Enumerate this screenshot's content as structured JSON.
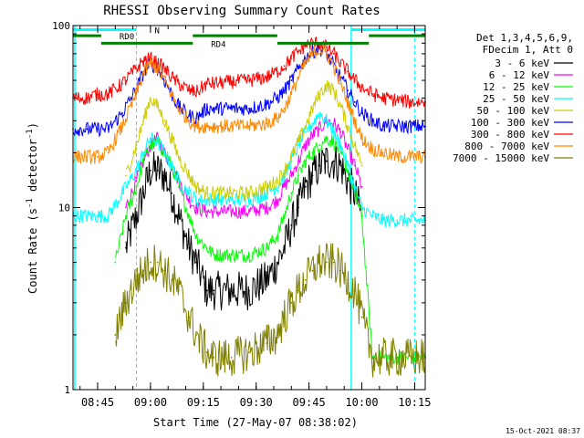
{
  "chart_data": {
    "type": "line",
    "title": "RHESSI Observing Summary Count Rates",
    "xlabel": "Start Time (27-May-07 08:38:02)",
    "ylabel": "Count Rate (s⁻¹ detector⁻¹)",
    "ylabel_main": "Count Rate (s",
    "ylabel_sup1": "-1",
    "ylabel_mid": " detector",
    "ylabel_sup2": "-1",
    "ylabel_end": ")",
    "yscale": "log",
    "ylim": [
      1,
      100
    ],
    "xlim_minutes": [
      0,
      100
    ],
    "y_ticks": [
      {
        "value": 1,
        "label": "1"
      },
      {
        "value": 10,
        "label": "10"
      },
      {
        "value": 100,
        "label": "100"
      }
    ],
    "x_ticks": [
      {
        "minute": 7,
        "label": "08:45"
      },
      {
        "minute": 22,
        "label": "09:00"
      },
      {
        "minute": 37,
        "label": "09:15"
      },
      {
        "minute": 52,
        "label": "09:30"
      },
      {
        "minute": 67,
        "label": "09:45"
      },
      {
        "minute": 82,
        "label": "10:00"
      },
      {
        "minute": 97,
        "label": "10:15"
      }
    ],
    "legend_header": [
      "Det 1,3,4,5,6,9,",
      "FDecim 1, Att 0"
    ],
    "series": [
      {
        "name": "3 - 6 keV",
        "color": "#000000",
        "x": [
          8,
          12,
          15,
          18,
          20,
          22,
          24,
          26,
          28,
          30,
          33,
          35,
          38,
          40,
          45,
          50,
          55,
          58,
          60,
          62,
          64,
          66,
          68,
          70,
          72,
          74,
          76,
          78,
          80,
          82,
          85
        ],
        "values": [
          null,
          null,
          6,
          9,
          12,
          16,
          16,
          15,
          12,
          9,
          6,
          5,
          3.5,
          3.5,
          3.5,
          3.5,
          4,
          5,
          6,
          8,
          10,
          13,
          15,
          17,
          18,
          18,
          17,
          14,
          12,
          9,
          null
        ]
      },
      {
        "name": "6 - 12 keV",
        "color": "#ff00ff",
        "x": [
          8,
          12,
          15,
          18,
          20,
          22,
          24,
          26,
          28,
          30,
          33,
          35,
          38,
          40,
          45,
          50,
          55,
          58,
          60,
          62,
          64,
          66,
          68,
          70,
          72,
          74,
          76,
          78,
          80,
          82,
          85
        ],
        "values": [
          null,
          null,
          10,
          14,
          18,
          22,
          24,
          20,
          17,
          14,
          11,
          10,
          9.5,
          9.5,
          9.5,
          9.5,
          10,
          11,
          13,
          15,
          18,
          22,
          25,
          27,
          30,
          29,
          26,
          21,
          17,
          13,
          null
        ]
      },
      {
        "name": "12 - 25 keV",
        "color": "#00ff00",
        "x": [
          0,
          8,
          12,
          15,
          18,
          20,
          22,
          24,
          26,
          28,
          30,
          33,
          35,
          38,
          40,
          45,
          50,
          55,
          58,
          60,
          62,
          64,
          66,
          68,
          70,
          72,
          74,
          76,
          78,
          80,
          82,
          85,
          88,
          92,
          96,
          100
        ],
        "values": [
          null,
          null,
          5,
          9,
          13,
          18,
          22,
          23,
          20,
          17,
          13,
          9,
          7,
          6,
          5.5,
          5.5,
          5.5,
          6,
          7,
          9,
          12,
          15,
          18,
          20,
          22,
          24,
          23,
          20,
          16,
          12,
          9,
          1.5,
          1.5,
          1.5,
          1.5,
          1.5
        ]
      },
      {
        "name": "25 - 50 keV",
        "color": "#00ffff",
        "x": [
          0,
          4,
          7,
          10,
          14,
          18,
          20,
          22,
          24,
          26,
          28,
          30,
          33,
          35,
          38,
          40,
          45,
          50,
          55,
          58,
          60,
          62,
          64,
          66,
          68,
          70,
          72,
          74,
          76,
          78,
          80,
          82,
          85,
          88,
          92,
          96,
          100
        ],
        "values": [
          9,
          9,
          9,
          9,
          12,
          16,
          20,
          24,
          23,
          20,
          17,
          14,
          12,
          11,
          11,
          11,
          11,
          11,
          12,
          13,
          15,
          18,
          22,
          26,
          29,
          33,
          30,
          26,
          22,
          17,
          13,
          10,
          9,
          8.5,
          8.5,
          8.5,
          8.5
        ]
      },
      {
        "name": "50 - 100 keV",
        "color": "#cccc00",
        "x": [
          8,
          12,
          15,
          18,
          20,
          22,
          24,
          26,
          28,
          30,
          33,
          35,
          38,
          40,
          45,
          50,
          55,
          58,
          60,
          62,
          64,
          66,
          68,
          70,
          72,
          74,
          76,
          78,
          80,
          82,
          85
        ],
        "values": [
          null,
          null,
          15,
          22,
          30,
          40,
          36,
          30,
          24,
          19,
          15,
          13,
          12,
          12,
          12,
          12,
          13,
          14,
          16,
          19,
          23,
          28,
          35,
          42,
          47,
          44,
          36,
          28,
          22,
          17,
          null
        ]
      },
      {
        "name": "100 - 300 keV",
        "color": "#0000ff",
        "x": [
          0,
          4,
          7,
          10,
          14,
          18,
          20,
          22,
          24,
          26,
          28,
          30,
          33,
          35,
          38,
          40,
          45,
          50,
          55,
          58,
          60,
          62,
          64,
          66,
          68,
          70,
          72,
          74,
          76,
          78,
          80,
          82,
          85,
          88,
          92,
          96,
          100
        ],
        "values": [
          27,
          27,
          27,
          27,
          33,
          45,
          55,
          62,
          58,
          50,
          42,
          36,
          32,
          31,
          35,
          35,
          35,
          35,
          37,
          40,
          44,
          50,
          58,
          66,
          72,
          75,
          70,
          60,
          52,
          44,
          38,
          33,
          30,
          28,
          28,
          28,
          28
        ]
      },
      {
        "name": "300 - 800 keV",
        "color": "#ff0000",
        "x": [
          0,
          4,
          7,
          10,
          14,
          18,
          20,
          22,
          24,
          26,
          28,
          30,
          33,
          35,
          38,
          40,
          45,
          50,
          55,
          58,
          60,
          62,
          64,
          66,
          68,
          70,
          72,
          74,
          76,
          78,
          80,
          82,
          85,
          88,
          92,
          96,
          100
        ],
        "values": [
          40,
          40,
          42,
          42,
          48,
          58,
          64,
          66,
          62,
          58,
          52,
          48,
          44,
          43,
          48,
          48,
          49,
          50,
          52,
          56,
          60,
          66,
          72,
          78,
          80,
          80,
          76,
          70,
          62,
          56,
          50,
          46,
          42,
          40,
          39,
          38,
          38
        ]
      },
      {
        "name": "800 - 7000 keV",
        "color": "#ff8800",
        "x": [
          0,
          4,
          7,
          10,
          14,
          18,
          20,
          22,
          24,
          26,
          28,
          30,
          33,
          35,
          38,
          40,
          45,
          50,
          55,
          58,
          60,
          62,
          64,
          66,
          68,
          70,
          72,
          74,
          76,
          78,
          80,
          82,
          85,
          88,
          92,
          96,
          100
        ],
        "values": [
          19,
          19,
          19,
          20,
          28,
          42,
          55,
          62,
          58,
          50,
          42,
          35,
          30,
          28,
          28,
          28,
          28,
          28,
          29,
          31,
          35,
          42,
          52,
          62,
          70,
          74,
          70,
          60,
          48,
          38,
          30,
          24,
          21,
          20,
          19,
          19,
          19
        ]
      },
      {
        "name": "7000 - 15000 keV",
        "color": "#808000",
        "x": [
          0,
          8,
          12,
          15,
          18,
          20,
          22,
          24,
          26,
          28,
          30,
          33,
          35,
          38,
          40,
          45,
          50,
          55,
          58,
          60,
          62,
          64,
          66,
          68,
          70,
          72,
          74,
          76,
          78,
          80,
          82,
          85,
          88,
          92,
          96,
          100
        ],
        "values": [
          null,
          null,
          2,
          3,
          4,
          4.5,
          5,
          5,
          4.5,
          4,
          3.5,
          2.5,
          2,
          1.6,
          1.5,
          1.5,
          1.6,
          1.8,
          2,
          2.5,
          3,
          3.5,
          4,
          4.5,
          5,
          5,
          5,
          4.5,
          4,
          3.5,
          2.5,
          1.5,
          1.5,
          1.5,
          1.5,
          1.5
        ]
      }
    ],
    "state_bars": [
      {
        "label": "N",
        "color": "#00ffff",
        "y": 95,
        "segments": [
          [
            0,
            18
          ],
          [
            79,
            100
          ]
        ]
      },
      {
        "label": "RD0",
        "color": "#008000",
        "y": 88,
        "segments": [
          [
            0,
            8
          ],
          [
            34,
            58
          ],
          [
            84,
            100
          ]
        ]
      },
      {
        "label": "RD4",
        "color": "#008000",
        "y": 80,
        "segments": [
          [
            8,
            34
          ],
          [
            58,
            84
          ]
        ]
      }
    ],
    "solid_vlines_minutes": [
      0,
      79
    ],
    "dashed_vlines_minutes": [
      18,
      97
    ],
    "footer_date": "15-Oct-2021 08:37"
  }
}
